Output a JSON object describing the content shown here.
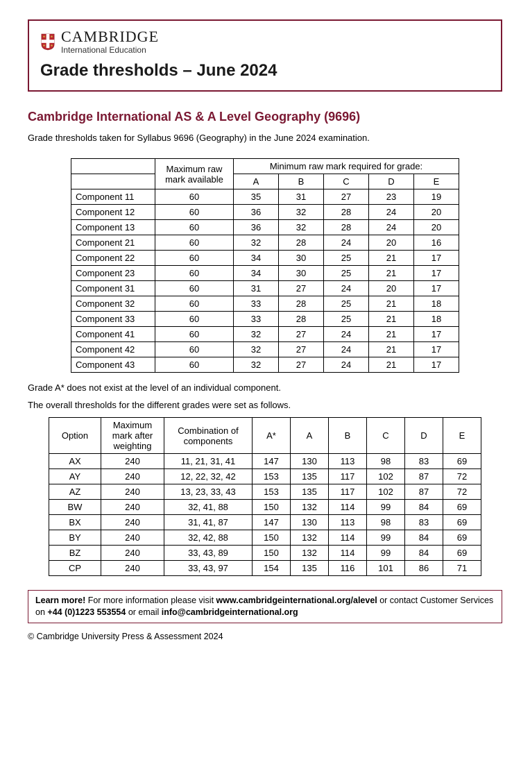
{
  "colors": {
    "brand_border": "#7a1832",
    "text": "#000000",
    "background": "#ffffff",
    "subtitle": "#7a1832",
    "shield_red": "#b8292f",
    "shield_gold": "#d9a441"
  },
  "brand": {
    "name": "CAMBRIDGE",
    "sub": "International Education"
  },
  "title": "Grade thresholds – June 2024",
  "subtitle": "Cambridge International AS & A Level Geography (9696)",
  "intro": "Grade thresholds taken for Syllabus 9696 (Geography) in the June 2024 examination.",
  "table1": {
    "span_header": "Minimum raw mark required for grade:",
    "max_header": "Maximum raw mark available",
    "grade_headers": [
      "A",
      "B",
      "C",
      "D",
      "E"
    ],
    "rows": [
      {
        "label": "Component 11",
        "max": "60",
        "marks": [
          "35",
          "31",
          "27",
          "23",
          "19"
        ]
      },
      {
        "label": "Component 12",
        "max": "60",
        "marks": [
          "36",
          "32",
          "28",
          "24",
          "20"
        ]
      },
      {
        "label": "Component 13",
        "max": "60",
        "marks": [
          "36",
          "32",
          "28",
          "24",
          "20"
        ]
      },
      {
        "label": "Component 21",
        "max": "60",
        "marks": [
          "32",
          "28",
          "24",
          "20",
          "16"
        ]
      },
      {
        "label": "Component 22",
        "max": "60",
        "marks": [
          "34",
          "30",
          "25",
          "21",
          "17"
        ]
      },
      {
        "label": "Component 23",
        "max": "60",
        "marks": [
          "34",
          "30",
          "25",
          "21",
          "17"
        ]
      },
      {
        "label": "Component 31",
        "max": "60",
        "marks": [
          "31",
          "27",
          "24",
          "20",
          "17"
        ]
      },
      {
        "label": "Component 32",
        "max": "60",
        "marks": [
          "33",
          "28",
          "25",
          "21",
          "18"
        ]
      },
      {
        "label": "Component 33",
        "max": "60",
        "marks": [
          "33",
          "28",
          "25",
          "21",
          "18"
        ]
      },
      {
        "label": "Component 41",
        "max": "60",
        "marks": [
          "32",
          "27",
          "24",
          "21",
          "17"
        ]
      },
      {
        "label": "Component 42",
        "max": "60",
        "marks": [
          "32",
          "27",
          "24",
          "21",
          "17"
        ]
      },
      {
        "label": "Component 43",
        "max": "60",
        "marks": [
          "32",
          "27",
          "24",
          "21",
          "17"
        ]
      }
    ]
  },
  "note1": "Grade A* does not exist at the level of an individual component.",
  "note2": "The overall thresholds for the different grades were set as follows.",
  "table2": {
    "headers": [
      "Option",
      "Maximum mark after weighting",
      "Combination of components",
      "A*",
      "A",
      "B",
      "C",
      "D",
      "E"
    ],
    "rows": [
      {
        "opt": "AX",
        "max": "240",
        "comb": "11, 21, 31, 41",
        "g": [
          "147",
          "130",
          "113",
          "98",
          "83",
          "69"
        ]
      },
      {
        "opt": "AY",
        "max": "240",
        "comb": "12, 22, 32, 42",
        "g": [
          "153",
          "135",
          "117",
          "102",
          "87",
          "72"
        ]
      },
      {
        "opt": "AZ",
        "max": "240",
        "comb": "13, 23, 33, 43",
        "g": [
          "153",
          "135",
          "117",
          "102",
          "87",
          "72"
        ]
      },
      {
        "opt": "BW",
        "max": "240",
        "comb": "32, 41, 88",
        "g": [
          "150",
          "132",
          "114",
          "99",
          "84",
          "69"
        ]
      },
      {
        "opt": "BX",
        "max": "240",
        "comb": "31, 41, 87",
        "g": [
          "147",
          "130",
          "113",
          "98",
          "83",
          "69"
        ]
      },
      {
        "opt": "BY",
        "max": "240",
        "comb": "32, 42, 88",
        "g": [
          "150",
          "132",
          "114",
          "99",
          "84",
          "69"
        ]
      },
      {
        "opt": "BZ",
        "max": "240",
        "comb": "33, 43, 89",
        "g": [
          "150",
          "132",
          "114",
          "99",
          "84",
          "69"
        ]
      },
      {
        "opt": "CP",
        "max": "240",
        "comb": "33, 43, 97",
        "g": [
          "154",
          "135",
          "116",
          "101",
          "86",
          "71"
        ]
      }
    ]
  },
  "footer": {
    "learn": "Learn more!",
    "text1": " For more information please visit ",
    "link1": "www.cambridgeinternational.org/alevel",
    "text2": " or contact Customer Services on ",
    "phone": "+44 (0)1223 553554",
    "text3": " or email ",
    "email": "info@cambridgeinternational.org"
  },
  "copyright": "© Cambridge University Press & Assessment 2024"
}
